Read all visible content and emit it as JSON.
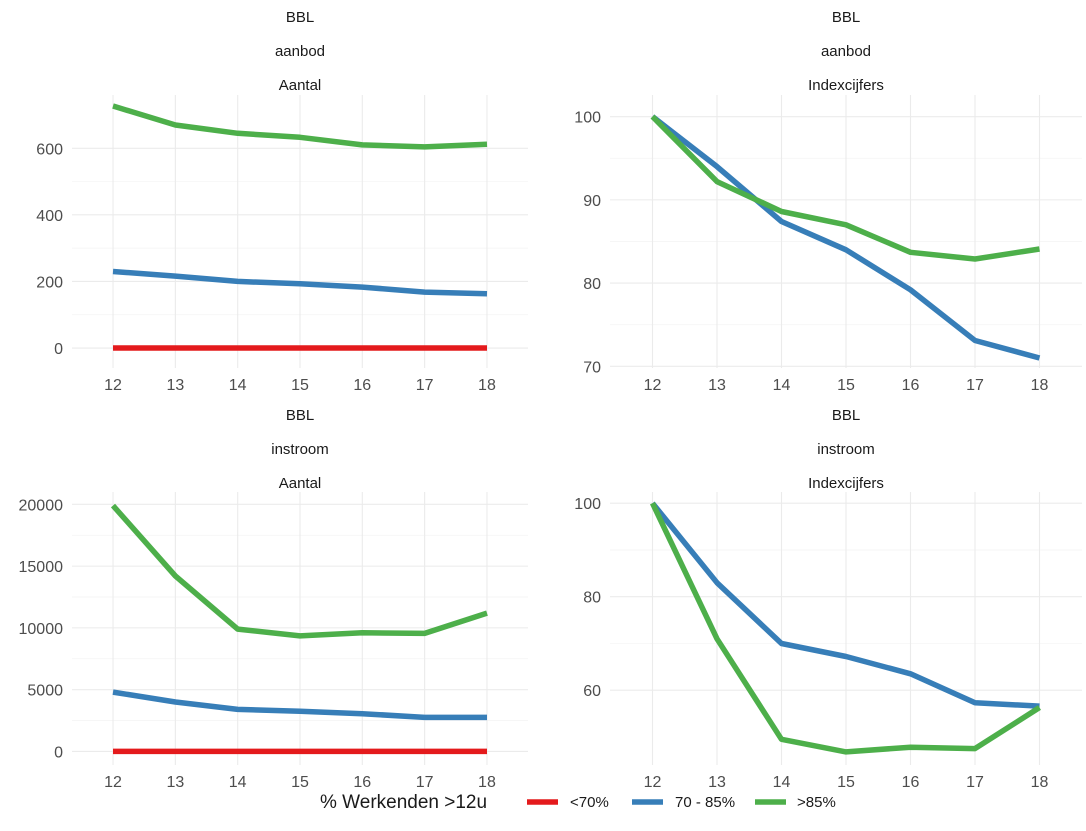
{
  "chart_data": [
    {
      "type": "line",
      "strip": [
        "BBL",
        "aanbod",
        "Aantal"
      ],
      "x": [
        12,
        13,
        14,
        15,
        16,
        17,
        18
      ],
      "yticks": [
        0,
        200,
        400,
        600
      ],
      "ylim": [
        -60,
        760
      ],
      "grid": true,
      "series": [
        {
          "name": "<70%",
          "color": "#e41a1c",
          "values": [
            0,
            0,
            0,
            0,
            0,
            0,
            0
          ]
        },
        {
          "name": "70 - 85%",
          "color": "#377eb8",
          "values": [
            230,
            216,
            200,
            193,
            183,
            168,
            163
          ]
        },
        {
          "name": ">85%",
          "color": "#4daf4a",
          "values": [
            727,
            670,
            645,
            633,
            610,
            604,
            612
          ]
        }
      ]
    },
    {
      "type": "line",
      "strip": [
        "BBL",
        "aanbod",
        "Indexcijfers"
      ],
      "x": [
        12,
        13,
        14,
        15,
        16,
        17,
        18
      ],
      "yticks": [
        70,
        80,
        90,
        100
      ],
      "ylim": [
        69.8,
        102.6
      ],
      "grid": true,
      "series": [
        {
          "name": "70 - 85%",
          "color": "#377eb8",
          "values": [
            100,
            94,
            87.4,
            84,
            79.2,
            73.1,
            71
          ]
        },
        {
          "name": ">85%",
          "color": "#4daf4a",
          "values": [
            100,
            92.2,
            88.6,
            87,
            83.7,
            82.9,
            84.1
          ]
        }
      ]
    },
    {
      "type": "line",
      "strip": [
        "BBL",
        "instroom",
        "Aantal"
      ],
      "x": [
        12,
        13,
        14,
        15,
        16,
        17,
        18
      ],
      "yticks": [
        0,
        5000,
        10000,
        15000,
        20000
      ],
      "ylim": [
        -1100,
        21000
      ],
      "grid": true,
      "series": [
        {
          "name": "<70%",
          "color": "#e41a1c",
          "values": [
            0,
            0,
            0,
            0,
            0,
            0,
            0
          ]
        },
        {
          "name": "70 - 85%",
          "color": "#377eb8",
          "values": [
            4800,
            4000,
            3400,
            3250,
            3050,
            2750,
            2750
          ]
        },
        {
          "name": ">85%",
          "color": "#4daf4a",
          "values": [
            19900,
            14200,
            9900,
            9350,
            9600,
            9550,
            11200
          ]
        }
      ]
    },
    {
      "type": "line",
      "strip": [
        "BBL",
        "instroom",
        "Indexcijfers"
      ],
      "x": [
        12,
        13,
        14,
        15,
        16,
        17,
        18
      ],
      "yticks": [
        60,
        80,
        100
      ],
      "ylim": [
        44,
        102.4
      ],
      "grid": true,
      "series": [
        {
          "name": "70 - 85%",
          "color": "#377eb8",
          "values": [
            100,
            83,
            70,
            67.2,
            63.5,
            57.3,
            56.6
          ]
        },
        {
          "name": ">85%",
          "color": "#4daf4a",
          "values": [
            100,
            71,
            49.5,
            46.8,
            47.8,
            47.5,
            56.3
          ]
        }
      ]
    }
  ],
  "legend": {
    "title": "% Werkenden >12u",
    "placement": "bottom",
    "items": [
      {
        "label": "<70%",
        "color": "#e41a1c"
      },
      {
        "label": "70 - 85%",
        "color": "#377eb8"
      },
      {
        "label": ">85%",
        "color": "#4daf4a"
      }
    ]
  }
}
